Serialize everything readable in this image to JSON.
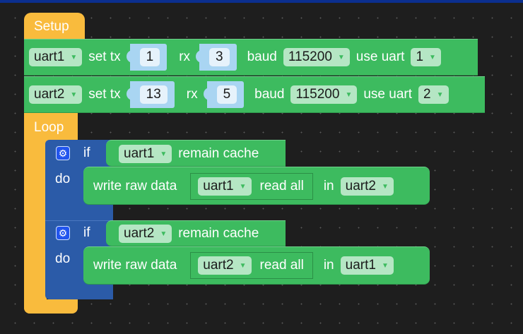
{
  "setup": {
    "label": "Setup",
    "rows": [
      {
        "port": "uart1",
        "set_tx": "set tx",
        "tx": "1",
        "rx_label": "rx",
        "rx": "3",
        "baud_label": "baud",
        "baud": "115200",
        "use_label": "use uart",
        "uart": "1"
      },
      {
        "port": "uart2",
        "set_tx": "set tx",
        "tx": "13",
        "rx_label": "rx",
        "rx": "5",
        "baud_label": "baud",
        "baud": "115200",
        "use_label": "use uart",
        "uart": "2"
      }
    ]
  },
  "loop": {
    "label": "Loop",
    "ifs": [
      {
        "if_label": "if",
        "cond_port": "uart1",
        "cond_text": "remain cache",
        "do_label": "do",
        "write_label": "write raw data",
        "read_port": "uart1",
        "read_text": "read all",
        "in_label": "in",
        "target": "uart2"
      },
      {
        "if_label": "if",
        "cond_port": "uart2",
        "cond_text": "remain cache",
        "do_label": "do",
        "write_label": "write raw data",
        "read_port": "uart2",
        "read_text": "read all",
        "in_label": "in",
        "target": "uart1"
      }
    ]
  },
  "colors": {
    "event": "#f9bb3d",
    "action": "#3dbb5f",
    "control": "#2b5ba8",
    "number_socket": "#a9d5f2",
    "background": "#1e1e1e"
  }
}
